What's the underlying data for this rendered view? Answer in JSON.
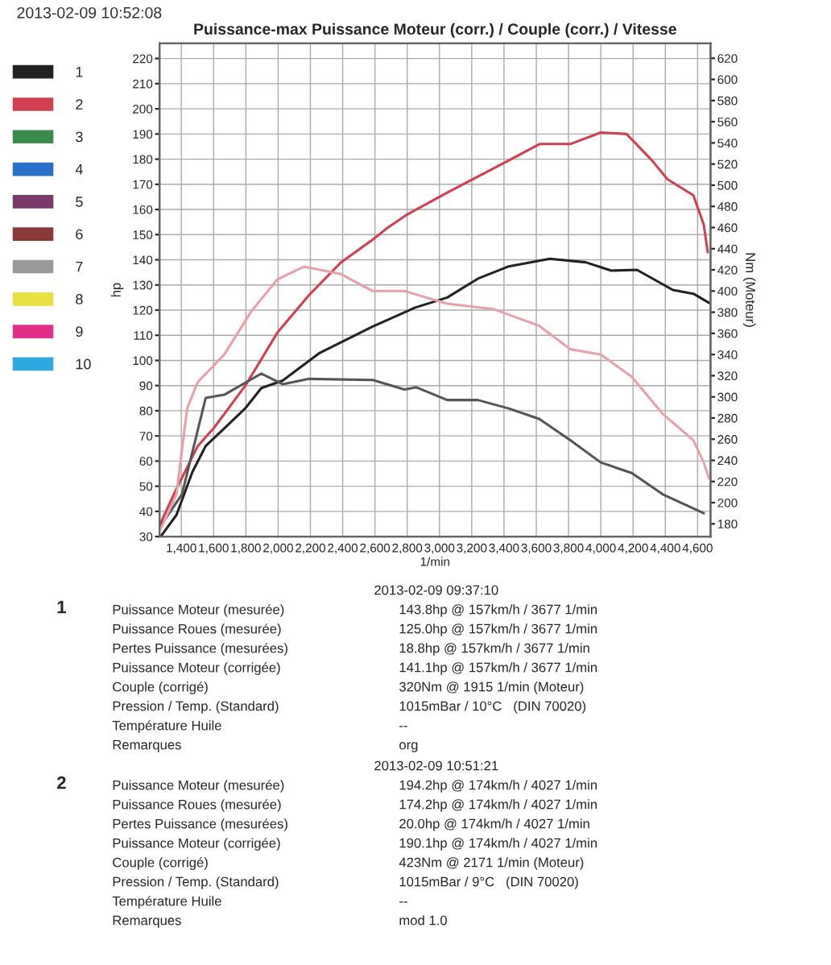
{
  "chart_data": {
    "type": "line",
    "title": "Puissance-max Puissance Moteur (corr.) / Couple (corr.) / Vitesse",
    "xlabel": "1/min",
    "ylabel": "hp",
    "y2label": "Nm (Moteur)",
    "xlim": [
      1265,
      4680
    ],
    "ylim": [
      30,
      226
    ],
    "y2lim": [
      168,
      634
    ],
    "xticks": [
      {
        "value": 1400,
        "label": "1,400"
      },
      {
        "value": 1600,
        "label": "1,600"
      },
      {
        "value": 1800,
        "label": "1,800"
      },
      {
        "value": 2000,
        "label": "2,000"
      },
      {
        "value": 2200,
        "label": "2,200"
      },
      {
        "value": 2400,
        "label": "2,400"
      },
      {
        "value": 2600,
        "label": "2,600"
      },
      {
        "value": 2800,
        "label": "2,800"
      },
      {
        "value": 3000,
        "label": "3,000"
      },
      {
        "value": 3200,
        "label": "3,200"
      },
      {
        "value": 3400,
        "label": "3,400"
      },
      {
        "value": 3600,
        "label": "3,600"
      },
      {
        "value": 3800,
        "label": "3,800"
      },
      {
        "value": 4000,
        "label": "4,000"
      },
      {
        "value": 4200,
        "label": "4,200"
      },
      {
        "value": 4400,
        "label": "4,400"
      },
      {
        "value": 4600,
        "label": "4,600"
      }
    ],
    "yticks": [
      30,
      40,
      50,
      60,
      70,
      80,
      90,
      100,
      110,
      120,
      130,
      140,
      150,
      160,
      170,
      180,
      190,
      200,
      210,
      220
    ],
    "y2ticks": [
      180,
      200,
      220,
      240,
      260,
      280,
      300,
      320,
      340,
      360,
      380,
      400,
      420,
      440,
      460,
      480,
      500,
      520,
      540,
      560,
      580,
      600,
      620
    ],
    "grid": true,
    "legend": "left",
    "marker": "none",
    "line_style": "solid",
    "series": [
      {
        "name": "1",
        "color": "#222222",
        "x": [
          1272,
          1370,
          1469,
          1551,
          1666,
          1797,
          1896,
          2028,
          2258,
          2586,
          2849,
          3048,
          3238,
          3430,
          3684,
          3906,
          4066,
          4224,
          4447,
          4574,
          4670
        ],
        "values": [
          30,
          38.6,
          55.7,
          66,
          73,
          81,
          89,
          92,
          103,
          113.5,
          121,
          125,
          132.5,
          137.4,
          140.4,
          139,
          135.7,
          136,
          128,
          126.5,
          122.9
        ]
      },
      {
        "name": "2",
        "color": "#d04050",
        "x": [
          1272,
          1370,
          1502,
          1600,
          1797,
          1995,
          2192,
          2390,
          2586,
          2684,
          2800,
          3048,
          3430,
          3620,
          3811,
          4000,
          4160,
          4317,
          4413,
          4574,
          4638,
          4663
        ],
        "values": [
          35.4,
          49,
          66,
          73,
          90,
          111,
          126,
          139,
          148,
          153,
          158,
          166.7,
          179.5,
          186,
          186,
          190.6,
          190,
          179.5,
          172,
          165.6,
          154,
          143
        ]
      },
      {
        "color": "#555555",
        "axis": "y2",
        "x": [
          1272,
          1404,
          1551,
          1666,
          1896,
          2028,
          2192,
          2586,
          2783,
          2857,
          3048,
          3238,
          3430,
          3620,
          3811,
          4000,
          4192,
          4383,
          4638
        ],
        "values": [
          178,
          208,
          299,
          302,
          322,
          312,
          317,
          316,
          307,
          309,
          297,
          297,
          289,
          279,
          259,
          238,
          228,
          208,
          190
        ]
      },
      {
        "color": "#e8a0a8",
        "axis": "y2",
        "x": [
          1272,
          1370,
          1436,
          1502,
          1666,
          1830,
          1995,
          2160,
          2390,
          2586,
          2783,
          3048,
          3334,
          3620,
          3811,
          4000,
          4192,
          4383,
          4574,
          4638,
          4670
        ],
        "values": [
          175,
          208,
          289,
          314,
          340,
          380,
          411,
          423,
          416,
          400,
          400,
          388,
          383,
          367,
          345,
          340,
          319,
          284,
          259,
          238,
          223
        ]
      },
      {
        "name": "3",
        "color": "#3a8a4a"
      },
      {
        "name": "4",
        "color": "#2a6fc9"
      },
      {
        "name": "5",
        "color": "#7a3a6a"
      },
      {
        "name": "6",
        "color": "#8a3a3a"
      },
      {
        "name": "7",
        "color": "#999999"
      },
      {
        "name": "8",
        "color": "#e8e040"
      },
      {
        "name": "9",
        "color": "#e0308a"
      },
      {
        "name": "10",
        "color": "#30a8e0"
      }
    ],
    "annotations": [
      "2013-02-09 10:52:08",
      "1",
      "2013-02-09 09:37:10",
      "Puissance Moteur (mesurée)",
      "143.8hp @ 157km/h / 3677 1/min",
      "Puissance Roues (mesurée)",
      "125.0hp @ 157km/h / 3677 1/min",
      "Pertes Puissance (mesurées)",
      "18.8hp @ 157km/h / 3677 1/min",
      "Puissance Moteur (corrigée)",
      "141.1hp @ 157km/h / 3677 1/min",
      "Couple (corrigé)",
      "320Nm @ 1915 1/min (Moteur)",
      "Pression / Temp. (Standard)",
      "1015mBar / 10°C   (DIN 70020)",
      "Température Huile",
      "--",
      "Remarques",
      "org",
      "2",
      "2013-02-09 10:51:21",
      "Puissance Moteur (mesurée)",
      "194.2hp @ 174km/h / 4027 1/min",
      "Puissance Roues (mesurée)",
      "174.2hp @ 174km/h / 4027 1/min",
      "Pertes Puissance (mesurées)",
      "20.0hp @ 174km/h / 4027 1/min",
      "Puissance Moteur (corrigée)",
      "190.1hp @ 174km/h / 4027 1/min",
      "Couple (corrigé)",
      "423Nm @ 2171 1/min (Moteur)",
      "Pression / Temp. (Standard)",
      "1015mBar / 9°C   (DIN 70020)",
      "Température Huile",
      "--",
      "Remarques",
      "mod 1.0"
    ]
  }
}
